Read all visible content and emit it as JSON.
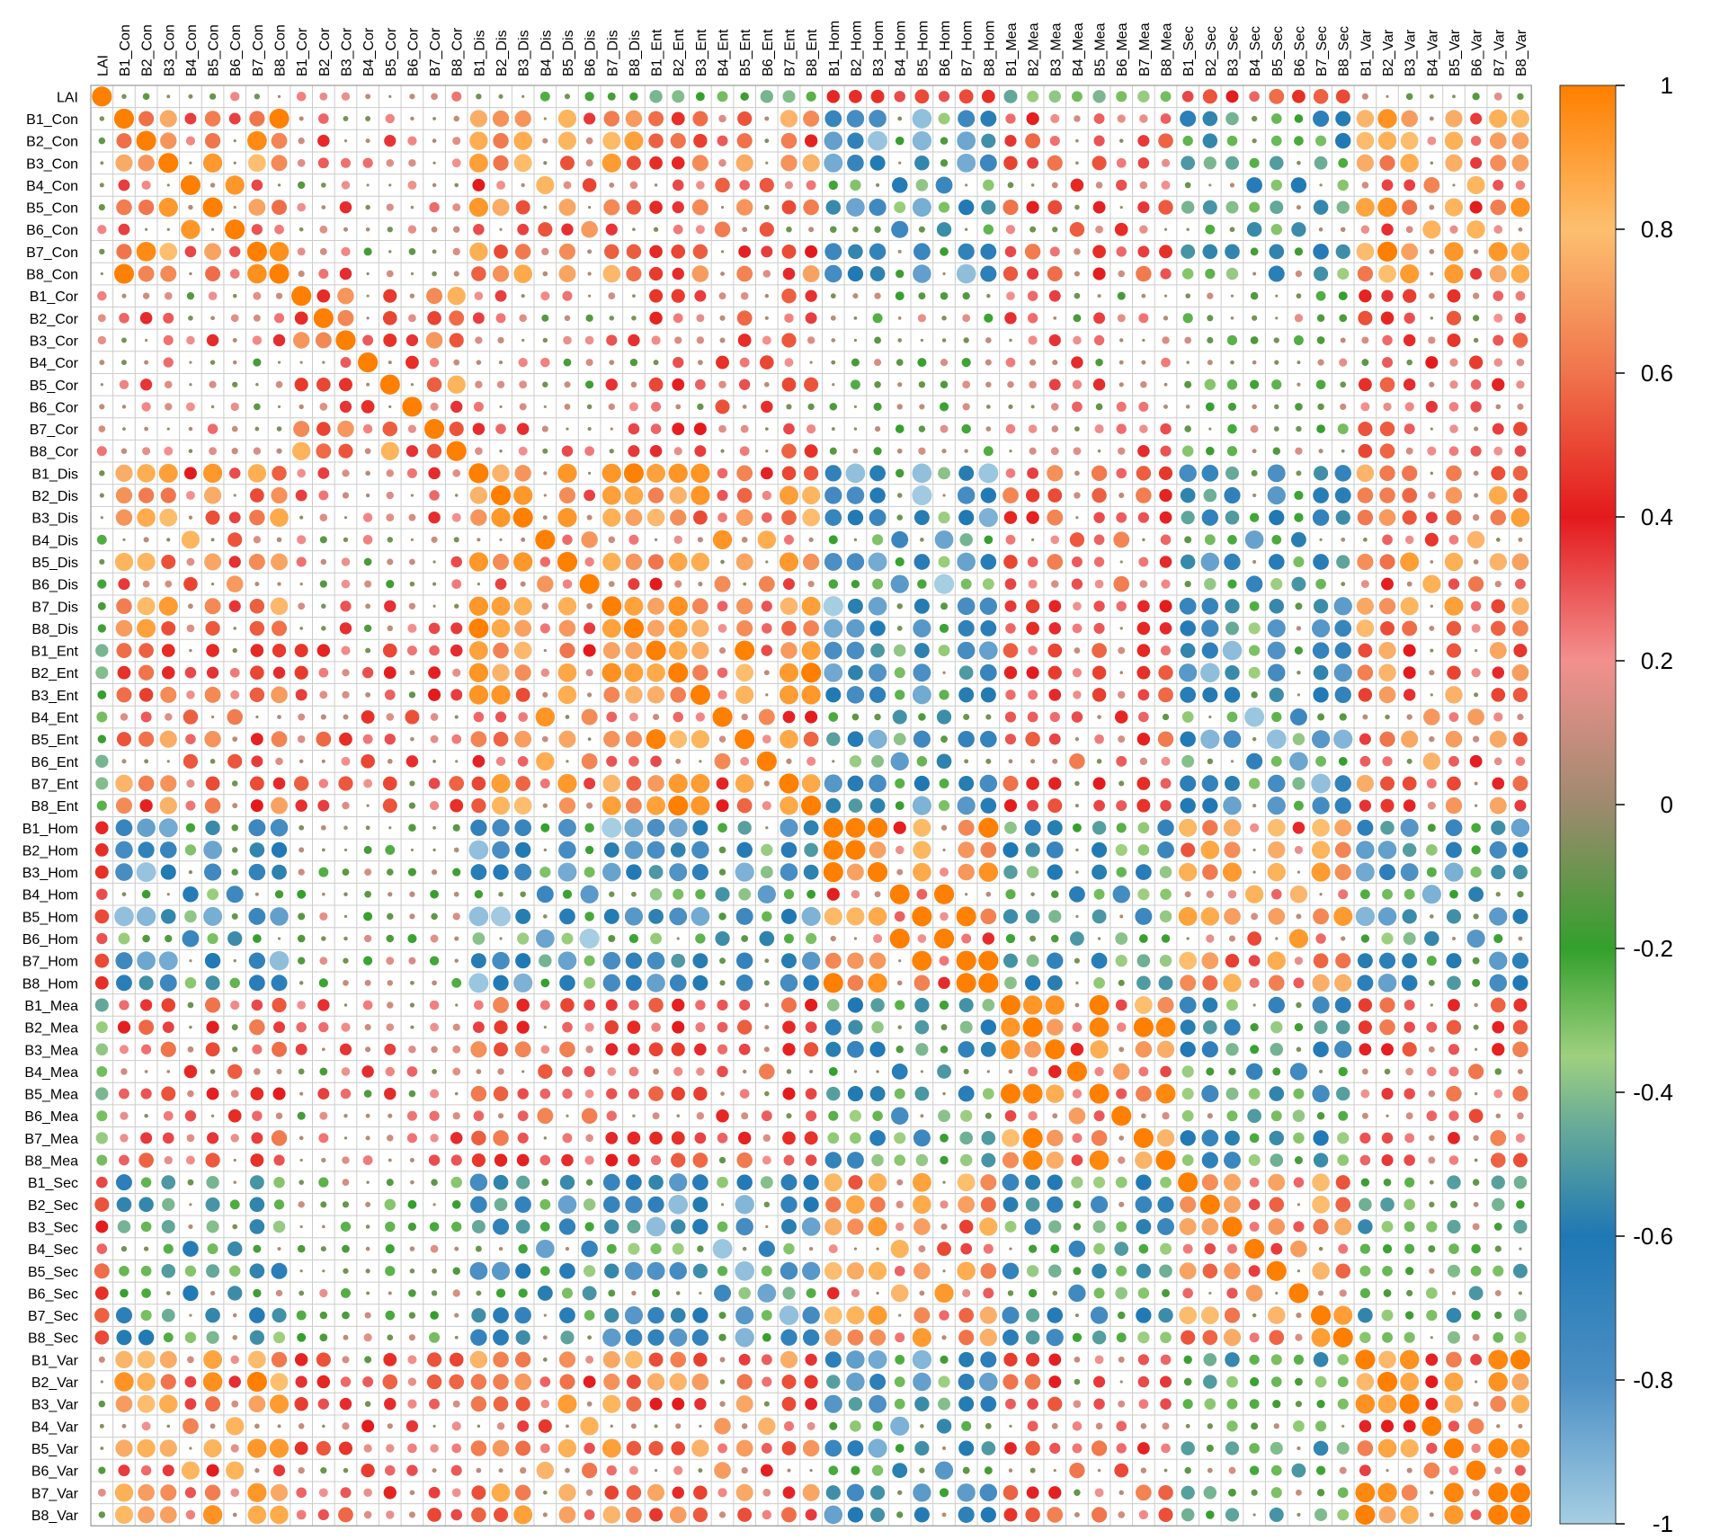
{
  "chart_data": {
    "type": "heatmap",
    "style": "correlation circle matrix",
    "variables": [
      "LAI",
      "B1_Con",
      "B2_Con",
      "B3_Con",
      "B4_Con",
      "B5_Con",
      "B6_Con",
      "B7_Con",
      "B8_Con",
      "B1_Cor",
      "B2_Cor",
      "B3_Cor",
      "B4_Cor",
      "B5_Cor",
      "B6_Cor",
      "B7_Cor",
      "B8_Cor",
      "B1_Dis",
      "B2_Dis",
      "B3_Dis",
      "B4_Dis",
      "B5_Dis",
      "B6_Dis",
      "B7_Dis",
      "B8_Dis",
      "B1_Ent",
      "B2_Ent",
      "B3_Ent",
      "B4_Ent",
      "B5_Ent",
      "B6_Ent",
      "B7_Ent",
      "B8_Ent",
      "B1_Hom",
      "B2_Hom",
      "B3_Hom",
      "B4_Hom",
      "B5_Hom",
      "B6_Hom",
      "B7_Hom",
      "B8_Hom",
      "B1_Mea",
      "B2_Mea",
      "B3_Mea",
      "B4_Mea",
      "B5_Mea",
      "B6_Mea",
      "B7_Mea",
      "B8_Mea",
      "B1_Sec",
      "B2_Sec",
      "B3_Sec",
      "B4_Sec",
      "B5_Sec",
      "B6_Sec",
      "B7_Sec",
      "B8_Sec",
      "B1_Var",
      "B2_Var",
      "B3_Var",
      "B4_Var",
      "B5_Var",
      "B6_Var",
      "B7_Var",
      "B8_Var"
    ],
    "families": [
      "Con",
      "Cor",
      "Dis",
      "Ent",
      "Hom",
      "Mea",
      "Sec",
      "Var"
    ],
    "family_correlations": {
      "Con": {
        "Con": 0.78,
        "Cor": 0.15,
        "Dis": 0.7,
        "Ent": 0.55,
        "Hom": -0.75,
        "Mea": 0.4,
        "Sec": -0.45,
        "Var": 0.8
      },
      "Cor": {
        "Con": 0.15,
        "Cor": 0.65,
        "Dis": 0.15,
        "Ent": 0.35,
        "Hom": -0.05,
        "Mea": 0.15,
        "Sec": -0.1,
        "Var": 0.35
      },
      "Dis": {
        "Con": 0.7,
        "Cor": 0.15,
        "Dis": 0.8,
        "Ent": 0.72,
        "Hom": -0.8,
        "Mea": 0.45,
        "Sec": -0.65,
        "Var": 0.68
      },
      "Ent": {
        "Con": 0.55,
        "Cor": 0.35,
        "Dis": 0.72,
        "Ent": 0.78,
        "Hom": -0.7,
        "Mea": 0.4,
        "Sec": -0.75,
        "Var": 0.55
      },
      "Hom": {
        "Con": -0.75,
        "Cor": -0.05,
        "Dis": -0.8,
        "Ent": -0.7,
        "Hom": 0.85,
        "Mea": -0.55,
        "Sec": 0.7,
        "Var": -0.7
      },
      "Mea": {
        "Con": 0.4,
        "Cor": 0.15,
        "Dis": 0.45,
        "Ent": 0.4,
        "Hom": -0.55,
        "Mea": 0.85,
        "Sec": -0.55,
        "Var": 0.42
      },
      "Sec": {
        "Con": -0.45,
        "Cor": -0.1,
        "Dis": -0.65,
        "Ent": -0.75,
        "Hom": 0.7,
        "Mea": -0.55,
        "Sec": 0.7,
        "Var": -0.35
      },
      "Var": {
        "Con": 0.8,
        "Cor": 0.35,
        "Dis": 0.68,
        "Ent": 0.55,
        "Hom": -0.7,
        "Mea": 0.42,
        "Sec": -0.35,
        "Var": 0.85
      }
    },
    "lai_correlations": {
      "Con": 0.05,
      "Cor": 0.08,
      "Dis": -0.15,
      "Ent": -0.35,
      "Hom": 0.4,
      "Mea": -0.35,
      "Sec": 0.45,
      "Var": 0.03
    },
    "colorbar": {
      "ticks": [
        "1",
        "0.8",
        "0.6",
        "0.4",
        "0.2",
        "0",
        "-0.2",
        "-0.4",
        "-0.6",
        "-0.8",
        "-1"
      ],
      "range": [
        -1,
        1
      ],
      "colors": [
        {
          "v": -1.0,
          "c": "#a6cee3"
        },
        {
          "v": -0.8,
          "c": "#4b8fc4"
        },
        {
          "v": -0.6,
          "c": "#1f78b4"
        },
        {
          "v": -0.45,
          "c": "#66aa99"
        },
        {
          "v": -0.35,
          "c": "#9fd07f"
        },
        {
          "v": -0.2,
          "c": "#33a02c"
        },
        {
          "v": 0.0,
          "c": "#9e8a6e"
        },
        {
          "v": 0.2,
          "c": "#f3908e"
        },
        {
          "v": 0.4,
          "c": "#e31a1c"
        },
        {
          "v": 0.6,
          "c": "#f0744c"
        },
        {
          "v": 0.8,
          "c": "#fdbf6f"
        },
        {
          "v": 1.0,
          "c": "#ff7f00"
        }
      ]
    }
  }
}
